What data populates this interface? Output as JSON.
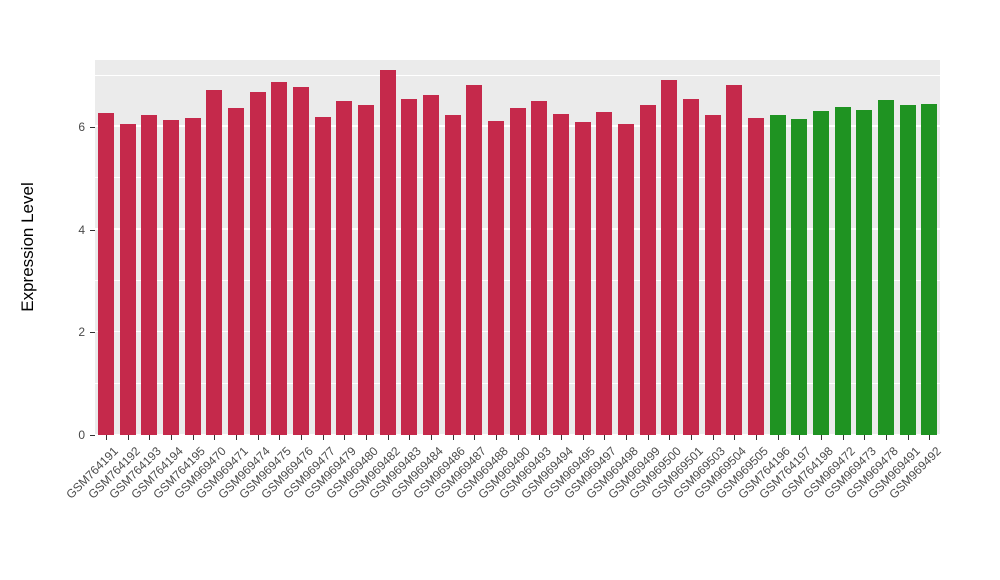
{
  "chart_data": {
    "type": "bar",
    "title": "",
    "xlabel": "",
    "ylabel": "Expression Level",
    "ylim": [
      0,
      7.3
    ],
    "yticks": [
      0,
      2,
      4,
      6
    ],
    "minor_gridlines": [
      1,
      3,
      5,
      7
    ],
    "grid": true,
    "legend_position": "none",
    "panel_background": "#EBEBEB",
    "gridline_color": "#FFFFFF",
    "group_colors": {
      "group1_red": "#C5294B",
      "group2_green": "#1F9322"
    },
    "categories": [
      "GSM764191",
      "GSM764192",
      "GSM764193",
      "GSM764194",
      "GSM764195",
      "GSM969470",
      "GSM969471",
      "GSM969474",
      "GSM969475",
      "GSM969476",
      "GSM969477",
      "GSM969479",
      "GSM969480",
      "GSM969482",
      "GSM969483",
      "GSM969484",
      "GSM969486",
      "GSM969487",
      "GSM969488",
      "GSM969490",
      "GSM969493",
      "GSM969494",
      "GSM969495",
      "GSM969497",
      "GSM969498",
      "GSM969499",
      "GSM969500",
      "GSM969501",
      "GSM969503",
      "GSM969504",
      "GSM969505",
      "GSM764196",
      "GSM764197",
      "GSM764198",
      "GSM969472",
      "GSM969473",
      "GSM969478",
      "GSM969491",
      "GSM969492"
    ],
    "values": [
      6.27,
      6.05,
      6.22,
      6.13,
      6.18,
      6.72,
      6.37,
      6.67,
      6.87,
      6.77,
      6.2,
      6.5,
      6.42,
      7.1,
      6.55,
      6.62,
      6.23,
      6.82,
      6.12,
      6.37,
      6.5,
      6.25,
      6.1,
      6.28,
      6.05,
      6.43,
      6.92,
      6.55,
      6.23,
      6.82,
      6.18,
      6.22,
      6.15,
      6.3,
      6.38,
      6.33,
      6.53,
      6.42,
      6.45
    ],
    "bar_colors": [
      "#C5294B",
      "#C5294B",
      "#C5294B",
      "#C5294B",
      "#C5294B",
      "#C5294B",
      "#C5294B",
      "#C5294B",
      "#C5294B",
      "#C5294B",
      "#C5294B",
      "#C5294B",
      "#C5294B",
      "#C5294B",
      "#C5294B",
      "#C5294B",
      "#C5294B",
      "#C5294B",
      "#C5294B",
      "#C5294B",
      "#C5294B",
      "#C5294B",
      "#C5294B",
      "#C5294B",
      "#C5294B",
      "#C5294B",
      "#C5294B",
      "#C5294B",
      "#C5294B",
      "#C5294B",
      "#C5294B",
      "#1F9322",
      "#1F9322",
      "#1F9322",
      "#1F9322",
      "#1F9322",
      "#1F9322",
      "#1F9322",
      "#1F9322"
    ]
  }
}
